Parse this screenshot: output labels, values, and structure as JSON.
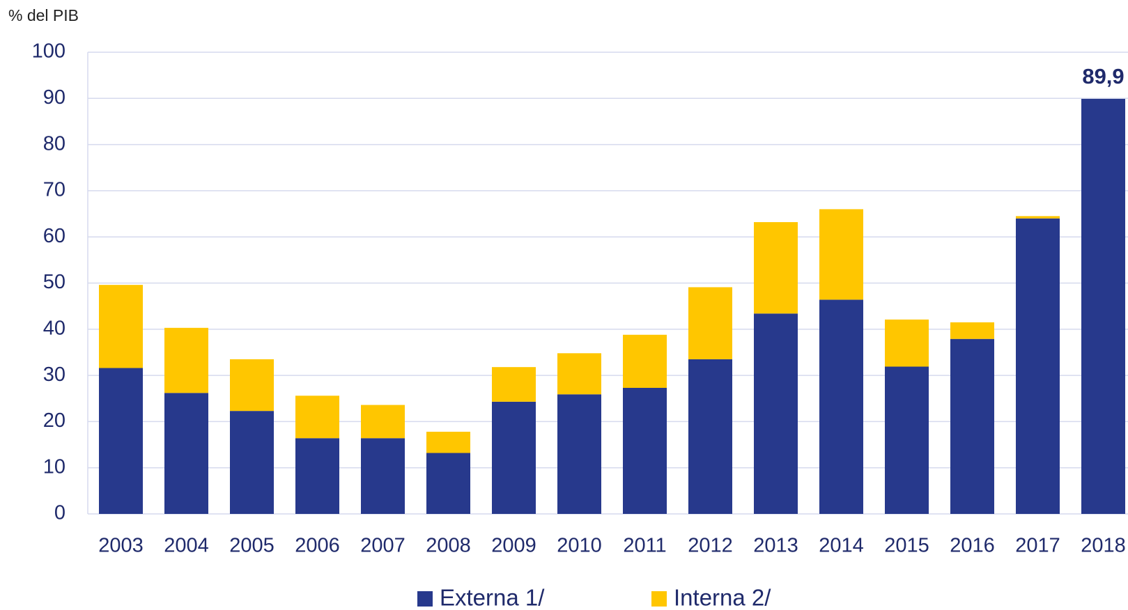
{
  "chart_data": {
    "type": "bar",
    "stacked": true,
    "y_axis_title": "% del PIB",
    "categories": [
      "2003",
      "2004",
      "2005",
      "2006",
      "2007",
      "2008",
      "2009",
      "2010",
      "2011",
      "2012",
      "2013",
      "2014",
      "2015",
      "2016",
      "2017",
      "2018"
    ],
    "series": [
      {
        "name": "Externa 1/",
        "color": "#27398c",
        "values": [
          31.6,
          26.2,
          22.3,
          16.4,
          16.4,
          13.2,
          24.3,
          25.9,
          27.3,
          33.5,
          43.4,
          46.4,
          31.9,
          37.9,
          64.0,
          89.9
        ],
        "value_labels": [
          null,
          null,
          null,
          null,
          null,
          null,
          null,
          null,
          null,
          null,
          null,
          null,
          null,
          null,
          null,
          "89,9"
        ]
      },
      {
        "name": "Interna 2/",
        "color": "#ffc600",
        "values": [
          18.0,
          14.1,
          11.2,
          9.2,
          7.2,
          4.6,
          7.5,
          8.9,
          11.5,
          15.6,
          19.8,
          19.6,
          10.2,
          3.6,
          0.5,
          0
        ]
      }
    ],
    "ylim": [
      0,
      100
    ],
    "yticks": [
      0,
      10,
      20,
      30,
      40,
      50,
      60,
      70,
      80,
      90,
      100
    ],
    "grid": true,
    "legend": "bottom"
  }
}
